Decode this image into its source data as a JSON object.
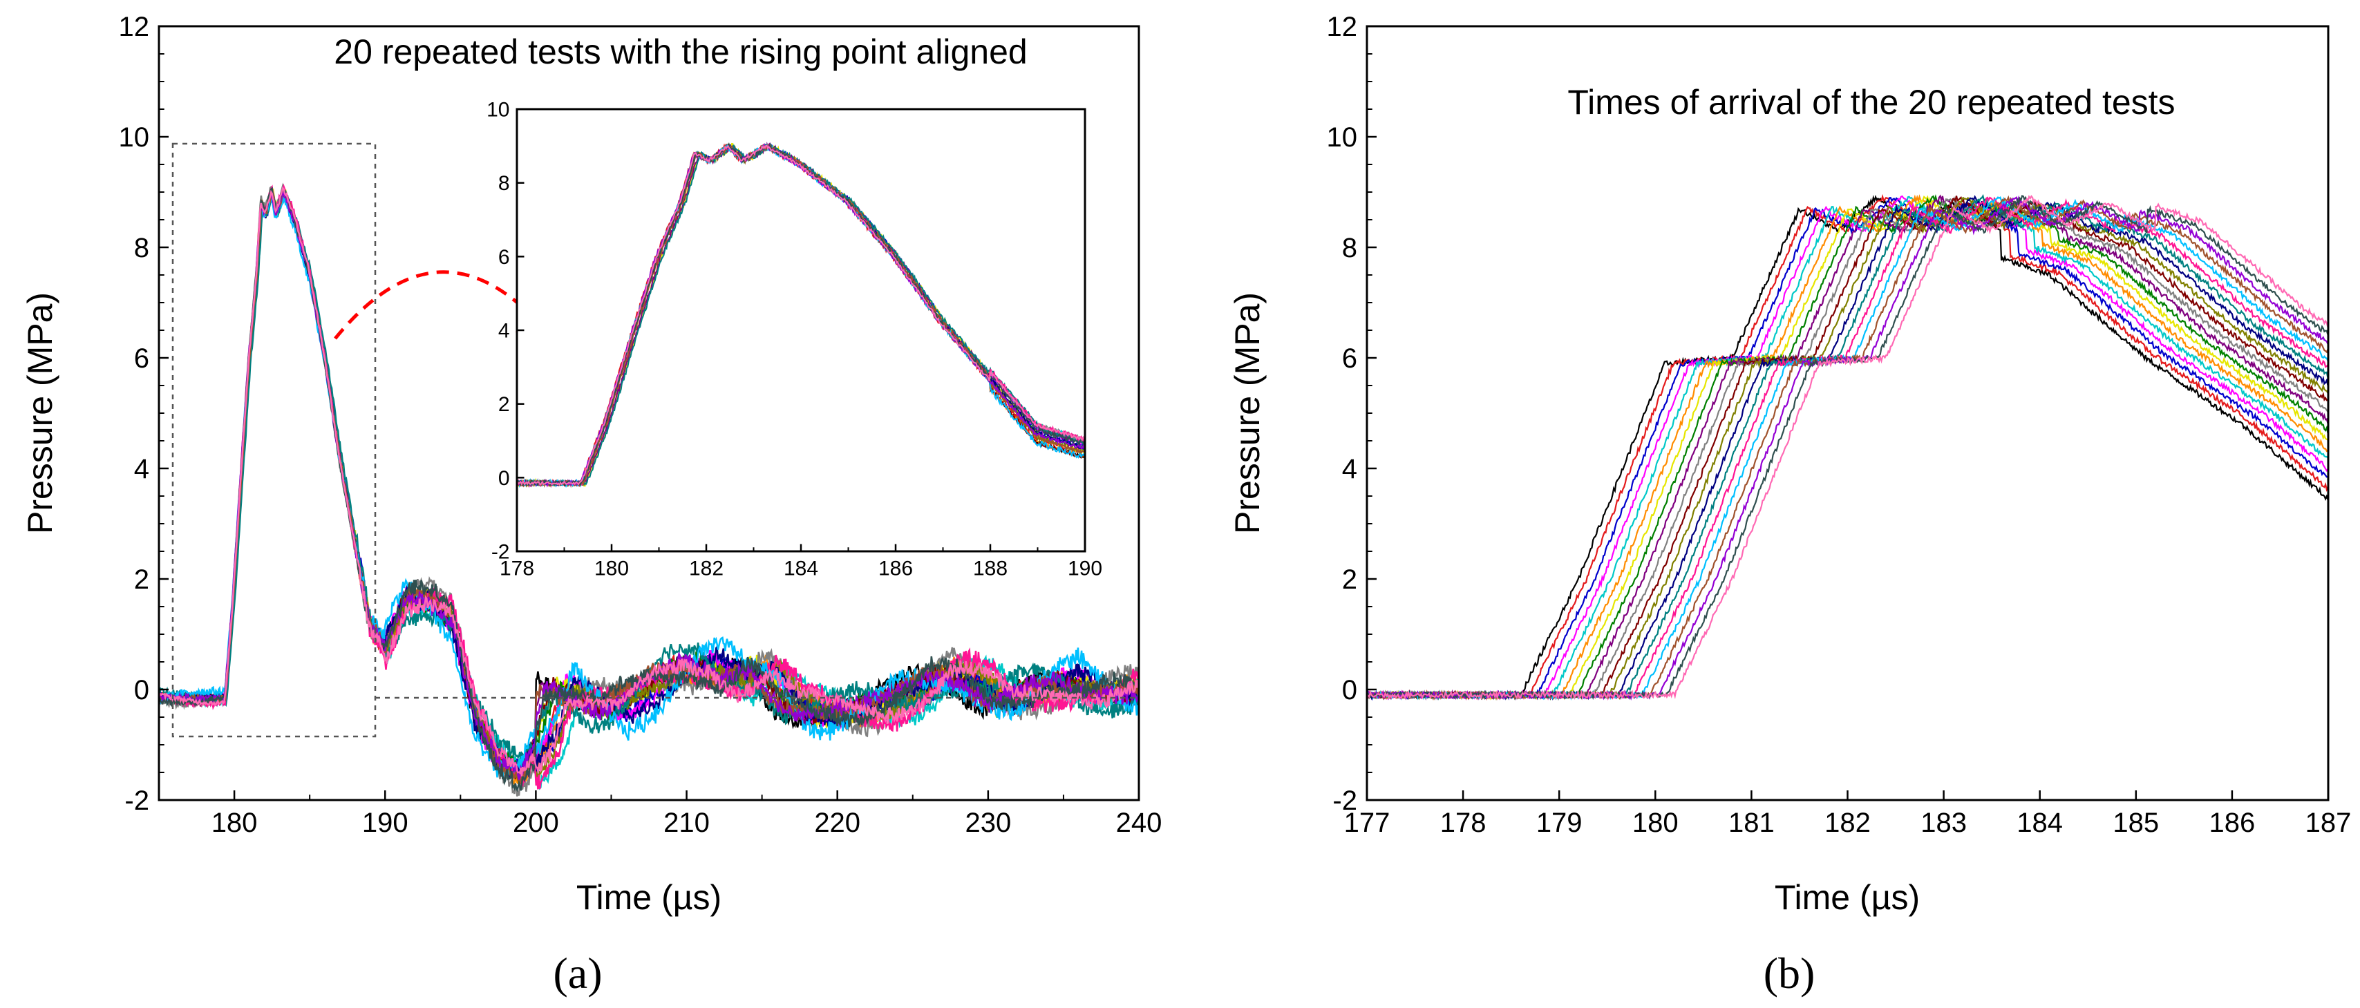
{
  "chart_data": [
    {
      "id": "a",
      "type": "line",
      "panel_label": "(a)",
      "title": "20 repeated tests with the rising point aligned",
      "xlabel": "Time (µs)",
      "ylabel": "Pressure (MPa)",
      "xlim": [
        175,
        240
      ],
      "ylim": [
        -2,
        12
      ],
      "xticks": [
        180,
        190,
        200,
        210,
        220,
        230,
        240
      ],
      "yticks": [
        -2,
        0,
        2,
        4,
        6,
        8,
        10,
        12
      ],
      "grid": false,
      "legend": "none",
      "n_series": 20,
      "series_colors": [
        "#000000",
        "#e41a1c",
        "#0000cc",
        "#ff00ff",
        "#00c8c8",
        "#ff8c00",
        "#e6e600",
        "#008000",
        "#800080",
        "#808080",
        "#800000",
        "#808000",
        "#000080",
        "#008080",
        "#ff1493",
        "#00bfff",
        "#a0522d",
        "#9400d3",
        "#2f4f4f",
        "#ff69b4"
      ],
      "reference_curve": {
        "x": [
          175,
          179.4,
          179.9,
          180.5,
          181.0,
          181.5,
          181.8,
          182.1,
          182.5,
          182.8,
          183.3,
          184.0,
          185.0,
          186.0,
          187.0,
          188.0,
          189.0,
          190.0,
          191.5,
          193.0,
          194.5,
          196.0,
          197.5,
          199.0,
          200.5,
          201.5,
          203.0,
          205.0,
          207.0,
          209.0,
          211.0,
          213.0,
          215.0,
          217.0,
          219.0,
          221.0,
          223.0,
          225.0,
          227.0,
          229.0,
          231.0,
          233.0,
          235.0,
          237.0,
          240.0
        ],
        "y": [
          -0.15,
          -0.15,
          1.5,
          4.0,
          6.0,
          7.5,
          8.8,
          8.6,
          9.0,
          8.6,
          9.0,
          8.5,
          7.5,
          6.0,
          4.2,
          2.7,
          1.2,
          0.8,
          1.7,
          1.6,
          1.2,
          -0.5,
          -1.3,
          -1.5,
          -0.8,
          0.1,
          -0.1,
          -0.4,
          -0.1,
          0.3,
          0.5,
          0.2,
          0.4,
          -0.3,
          -0.5,
          -0.4,
          -0.2,
          0.0,
          0.3,
          0.1,
          -0.3,
          0.0,
          0.2,
          0.0,
          -0.1
        ]
      },
      "inset": {
        "xlim": [
          178,
          190
        ],
        "ylim": [
          -2,
          10
        ],
        "xticks": [
          178,
          180,
          182,
          184,
          186,
          188,
          190
        ],
        "yticks": [
          -2,
          0,
          2,
          4,
          6,
          8,
          10
        ]
      }
    },
    {
      "id": "b",
      "type": "line",
      "panel_label": "(b)",
      "title": "Times of arrival of the 20 repeated tests",
      "xlabel": "Time (µs)",
      "ylabel": "Pressure (MPa)",
      "xlim": [
        177,
        187
      ],
      "ylim": [
        -2,
        12
      ],
      "xticks": [
        177,
        178,
        179,
        180,
        181,
        182,
        183,
        184,
        185,
        186,
        187
      ],
      "yticks": [
        -2,
        0,
        2,
        4,
        6,
        8,
        10,
        12
      ],
      "grid": false,
      "legend": "none",
      "n_series": 20,
      "arrival_range": [
        178.6,
        180.2
      ],
      "reference_curve": {
        "x_offset": [
          0,
          0.6,
          1.5,
          2.2,
          2.9,
          3.3,
          3.7,
          4.1,
          4.5,
          5.0,
          5.5,
          6.5,
          7.5,
          8.5
        ],
        "y": [
          -0.1,
          2.0,
          5.9,
          6.0,
          8.7,
          8.3,
          8.9,
          8.4,
          8.8,
          8.3,
          8.0,
          6.5,
          5.3,
          3.8
        ]
      }
    }
  ]
}
